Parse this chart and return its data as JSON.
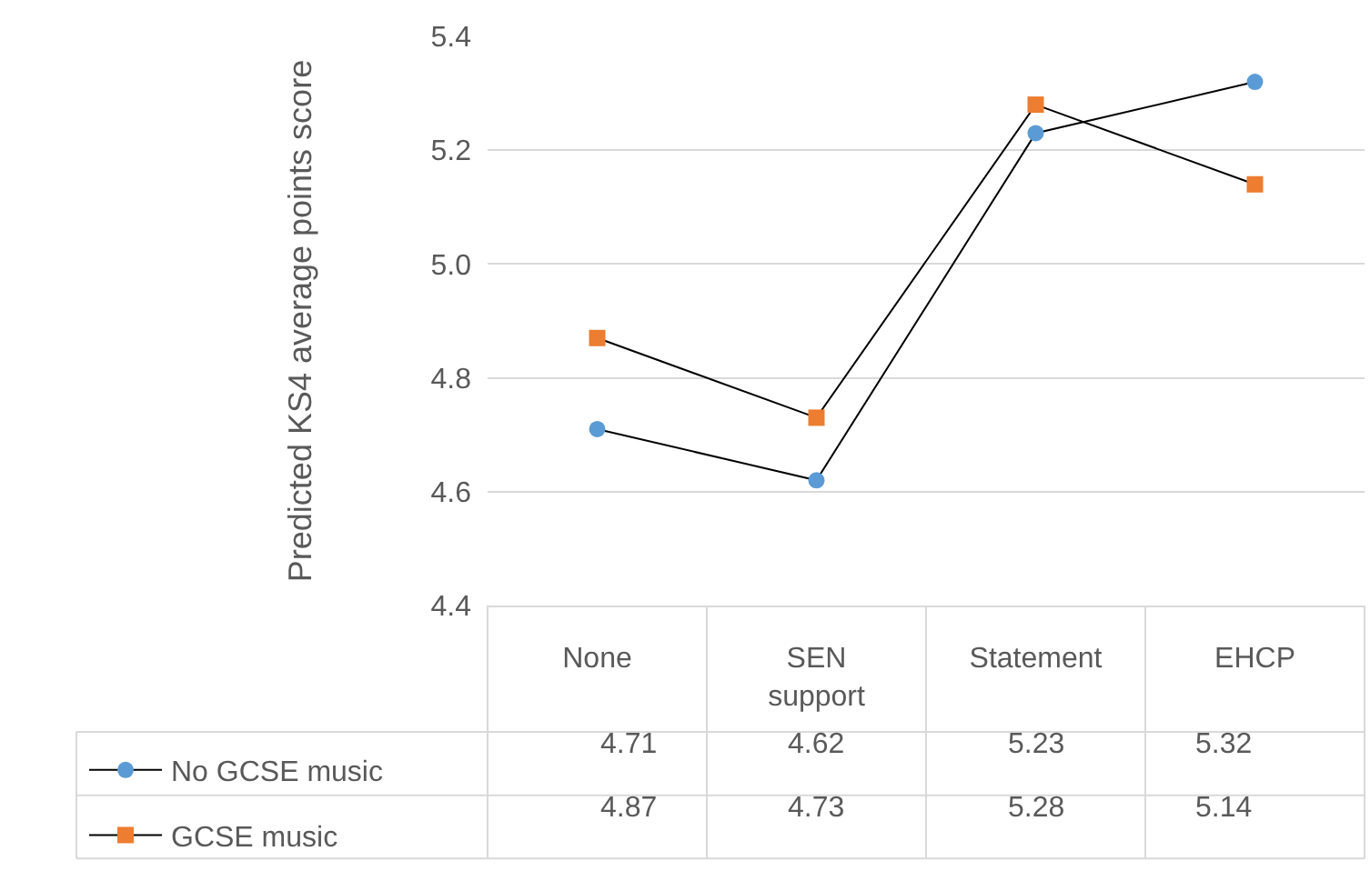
{
  "chart_data": {
    "type": "line",
    "ylabel": "Predicted KS4 average points score",
    "categories": [
      "None",
      "SEN\nsupport",
      "Statement",
      "EHCP"
    ],
    "series": [
      {
        "name": "No GCSE music",
        "color": "#5b9bd5",
        "marker": "circle",
        "values": [
          4.71,
          4.62,
          5.23,
          5.32
        ]
      },
      {
        "name": "GCSE music",
        "color": "#ed7d31",
        "marker": "square",
        "values": [
          4.87,
          4.73,
          5.28,
          5.14
        ]
      }
    ],
    "ylim": [
      4.4,
      5.4
    ],
    "yticks": [
      {
        "value": 4.4,
        "label": "4.4"
      },
      {
        "value": 4.6,
        "label": "4.6"
      },
      {
        "value": 4.8,
        "label": "4.8"
      },
      {
        "value": 5.0,
        "label": "5.0"
      },
      {
        "value": 5.2,
        "label": "5.2"
      },
      {
        "value": 5.4,
        "label": "5.4"
      }
    ],
    "grid": "y",
    "legend": "bottom left",
    "data_labels": true,
    "line_style": "solid"
  }
}
